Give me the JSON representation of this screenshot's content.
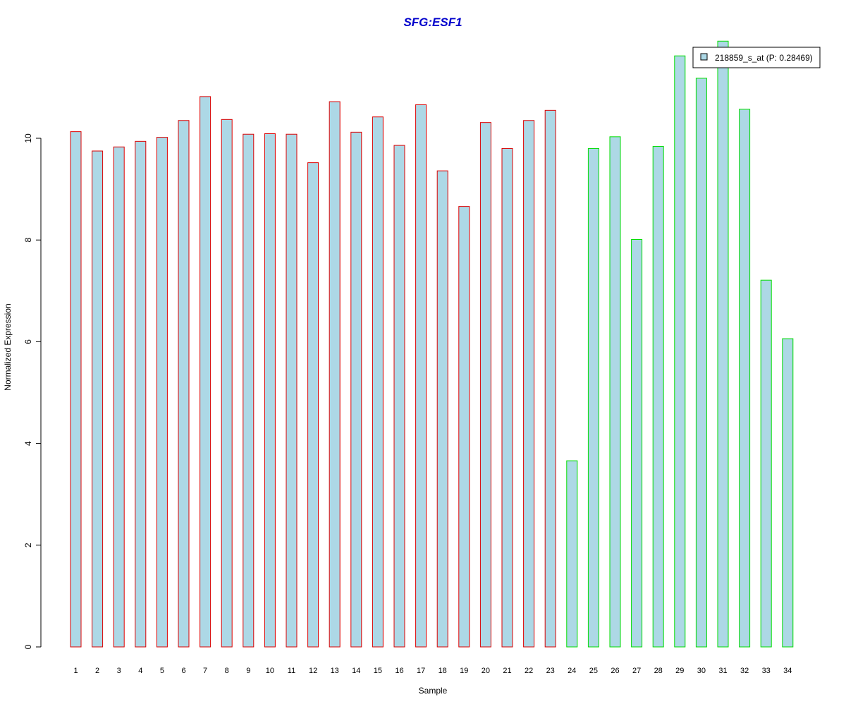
{
  "chart_data": {
    "type": "bar",
    "title": "SFG:ESF1",
    "xlabel": "Sample",
    "ylabel": "Normalized Expression",
    "categories": [
      "1",
      "2",
      "3",
      "4",
      "5",
      "6",
      "7",
      "8",
      "9",
      "10",
      "11",
      "12",
      "13",
      "14",
      "15",
      "16",
      "17",
      "18",
      "19",
      "20",
      "21",
      "22",
      "23",
      "24",
      "25",
      "26",
      "27",
      "28",
      "29",
      "30",
      "31",
      "32",
      "33",
      "34"
    ],
    "series": [
      {
        "name": "218859_s_at (P: 0.28469)",
        "values": [
          10.13,
          9.75,
          9.83,
          9.94,
          10.02,
          10.35,
          10.82,
          10.37,
          10.08,
          10.09,
          10.08,
          9.52,
          10.72,
          10.12,
          10.42,
          9.86,
          10.66,
          9.36,
          8.66,
          10.31,
          9.8,
          10.35,
          10.55,
          3.66,
          9.8,
          10.03,
          8.01,
          9.84,
          11.62,
          11.18,
          11.91,
          10.57,
          7.21,
          6.06
        ]
      }
    ],
    "group_of_bar": [
      "A",
      "A",
      "A",
      "A",
      "A",
      "A",
      "A",
      "A",
      "A",
      "A",
      "A",
      "A",
      "A",
      "A",
      "A",
      "A",
      "A",
      "A",
      "A",
      "A",
      "A",
      "A",
      "A",
      "B",
      "B",
      "B",
      "B",
      "B",
      "B",
      "B",
      "B",
      "B",
      "B",
      "B"
    ],
    "yticks": [
      0,
      2,
      4,
      6,
      8,
      10
    ],
    "ylim": [
      0,
      12
    ],
    "grid": false,
    "legend": {
      "position": "top-right",
      "entries": [
        "218859_s_at (P: 0.28469)"
      ]
    },
    "colors": {
      "title": "#0000cc",
      "bar_fill": "#add8e6",
      "group_A_border": "#dd0000",
      "group_B_border": "#00dd00",
      "axis": "#000000"
    }
  }
}
